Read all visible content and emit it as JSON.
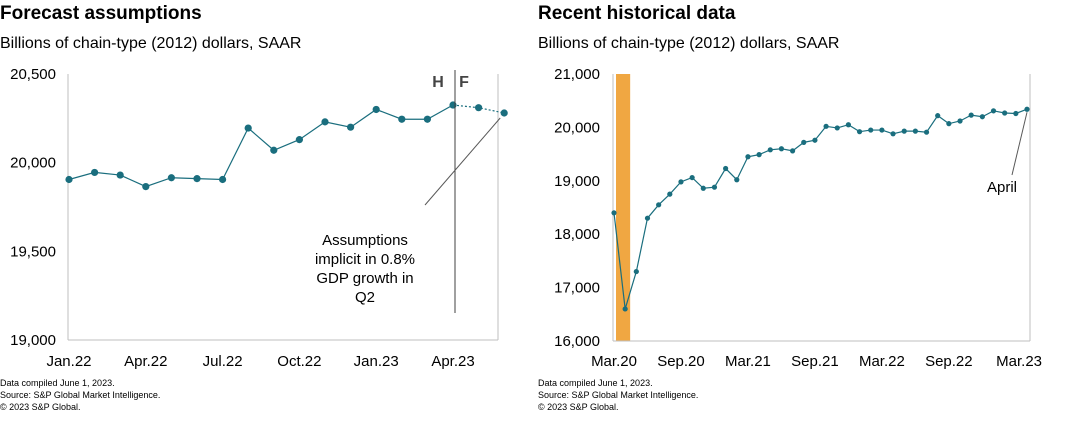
{
  "colors": {
    "series": "#1a6e7e",
    "recession": "#f0a742",
    "axis": "#bfbfbf"
  },
  "chart_data": [
    {
      "type": "line",
      "title": "Forecast assumptions",
      "subtitle": "Billions of chain-type (2012) dollars, SAAR",
      "ylim": [
        19000,
        20500
      ],
      "yticks": [
        "20,500",
        "20,000",
        "19,500",
        "19,000"
      ],
      "yticks_values": [
        20500,
        20000,
        19500,
        19000
      ],
      "xtick_labels": [
        "Jan.22",
        "Apr.22",
        "Jul.22",
        "Oct.22",
        "Jan.23",
        "Apr.23"
      ],
      "xtick_index": [
        0,
        3,
        6,
        9,
        12,
        15
      ],
      "x": [
        "Jan.22",
        "Feb.22",
        "Mar.22",
        "Apr.22",
        "May.22",
        "Jun.22",
        "Jul.22",
        "Aug.22",
        "Sep.22",
        "Oct.22",
        "Nov.22",
        "Dec.22",
        "Jan.23",
        "Feb.23",
        "Mar.23",
        "Apr.23",
        "May.23",
        "Jun.23"
      ],
      "series": [
        {
          "values": [
            19905,
            19945,
            19930,
            19865,
            19915,
            19910,
            19905,
            20195,
            20070,
            20130,
            20230,
            20200,
            20300,
            20245,
            20245,
            20325,
            20310,
            20280
          ]
        }
      ],
      "historical_count": 16,
      "divider_labels": {
        "historical": "H",
        "forecast": "F"
      },
      "annotation": [
        "Assumptions",
        "implicit  in 0.8%",
        "GDP  growth  in",
        "Q2"
      ],
      "notes": [
        "Data compiled June 1, 2023.",
        "Source: S&P Global Market Intelligence.",
        "© 2023 S&P Global."
      ]
    },
    {
      "type": "line",
      "title": "Recent historical  data",
      "subtitle": "Billions of chain-type (2012) dollars, SAAR",
      "ylim": [
        16000,
        21000
      ],
      "yticks": [
        "21,000",
        "20,000",
        "19,000",
        "18,000",
        "17,000",
        "16,000"
      ],
      "yticks_values": [
        21000,
        20000,
        19000,
        18000,
        17000,
        16000
      ],
      "xtick_labels": [
        "Mar.20",
        "Sep.20",
        "Mar.21",
        "Sep.21",
        "Mar.22",
        "Sep.22",
        "Mar.23"
      ],
      "xtick_index": [
        0,
        6,
        12,
        18,
        24,
        30,
        36
      ],
      "recession_band": [
        "Mar.20",
        "Apr.20"
      ],
      "series": [
        {
          "values": [
            18400,
            16600,
            17300,
            18300,
            18550,
            18750,
            18980,
            19060,
            18860,
            18880,
            19230,
            19020,
            19450,
            19490,
            19580,
            19600,
            19560,
            19720,
            19760,
            20020,
            19990,
            20050,
            19920,
            19950,
            19950,
            19880,
            19930,
            19930,
            19910,
            20220,
            20070,
            20120,
            20230,
            20200,
            20310,
            20270,
            20260,
            20340
          ]
        }
      ],
      "annotation": "April",
      "notes": [
        "Data compiled June 1, 2023.",
        "Source: S&P Global Market Intelligence.",
        "© 2023 S&P Global."
      ]
    }
  ]
}
